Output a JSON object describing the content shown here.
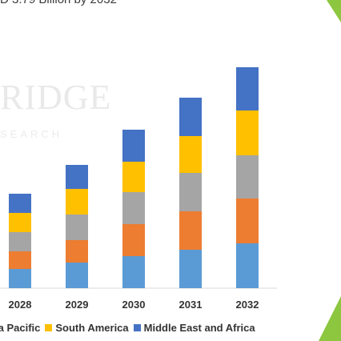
{
  "header": {
    "title_fragment": "D 3.79 Billion by 2032"
  },
  "watermark": {
    "text": "RIDGE",
    "sub": "SEARCH"
  },
  "chart_data": {
    "type": "bar",
    "stacked": true,
    "categories": [
      "2028",
      "2029",
      "2030",
      "2031",
      "2032"
    ],
    "series": [
      {
        "name": "",
        "color": "#5b9bd5",
        "values": [
          24,
          32,
          40,
          48,
          56
        ]
      },
      {
        "name": "",
        "color": "#ed7d31",
        "values": [
          22,
          28,
          40,
          48,
          56
        ]
      },
      {
        "name": "",
        "color": "#a5a5a5",
        "values": [
          24,
          32,
          40,
          48,
          54
        ]
      },
      {
        "name": "South America",
        "color": "#ffc000",
        "values": [
          24,
          32,
          38,
          46,
          56
        ]
      },
      {
        "name": "Middle East and Africa",
        "color": "#4472c4",
        "values": [
          24,
          30,
          40,
          48,
          54
        ]
      }
    ],
    "ylim": [
      0,
      280
    ],
    "grid": false
  },
  "legend": {
    "items": [
      {
        "label": "ia Pacific",
        "color": "#a5a5a5"
      },
      {
        "label": "South America",
        "color": "#ffc000"
      },
      {
        "label": "Middle East and Africa",
        "color": "#4472c4"
      }
    ]
  },
  "colors": {
    "accent_green": "#8dc63f"
  }
}
